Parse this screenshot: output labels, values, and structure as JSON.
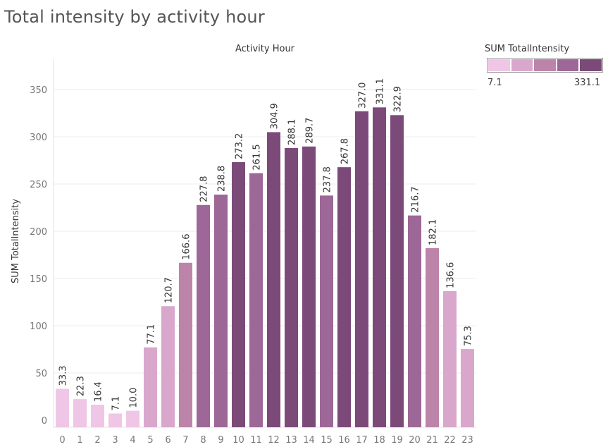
{
  "title": "Total intensity by activity hour",
  "legend": {
    "title": "SUM TotalIntensity",
    "min_label": "7.1",
    "max_label": "331.1",
    "colors": [
      "#efc6e6",
      "#d9a7cc",
      "#bc84a9",
      "#9d6797",
      "#7c4a79"
    ]
  },
  "chart_data": {
    "type": "bar",
    "title": "",
    "xlabel": "Activity Hour",
    "ylabel": "SUM TotalIntensity",
    "ylim": [
      0,
      380
    ],
    "yticks": [
      0,
      50,
      100,
      150,
      200,
      250,
      300,
      350
    ],
    "grid": true,
    "categories": [
      "0",
      "1",
      "2",
      "3",
      "4",
      "5",
      "6",
      "7",
      "8",
      "9",
      "10",
      "11",
      "12",
      "13",
      "14",
      "15",
      "16",
      "17",
      "18",
      "19",
      "20",
      "21",
      "22",
      "23"
    ],
    "values": [
      33.3,
      22.3,
      16.4,
      7.1,
      10.0,
      77.1,
      120.7,
      166.6,
      227.8,
      238.8,
      273.2,
      261.5,
      304.9,
      288.1,
      289.7,
      237.8,
      267.8,
      327.0,
      331.1,
      322.9,
      216.7,
      182.1,
      136.6,
      75.3
    ],
    "labels": [
      "33.3",
      "22.3",
      "16.4",
      "7.1",
      "10.0",
      "77.1",
      "120.7",
      "166.6",
      "227.8",
      "238.8",
      "273.2",
      "261.5",
      "304.9",
      "288.1",
      "289.7",
      "237.8",
      "267.8",
      "327.0",
      "331.1",
      "322.9",
      "216.7",
      "182.1",
      "136.6",
      "75.3"
    ],
    "color_range": [
      7.1,
      331.1
    ],
    "color_scale": [
      "#efc6e6",
      "#7c4a79"
    ]
  }
}
